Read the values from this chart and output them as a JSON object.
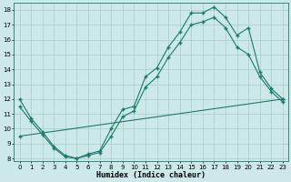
{
  "xlabel": "Humidex (Indice chaleur)",
  "bg_color": "#cce8e8",
  "line_color": "#1a7a6e",
  "grid_color": "#aacccc",
  "xlim": [
    -0.5,
    23.5
  ],
  "ylim": [
    7.8,
    18.5
  ],
  "xticks": [
    0,
    1,
    2,
    3,
    4,
    5,
    6,
    7,
    8,
    9,
    10,
    11,
    12,
    13,
    14,
    15,
    16,
    17,
    18,
    19,
    20,
    21,
    22,
    23
  ],
  "yticks": [
    8,
    9,
    10,
    11,
    12,
    13,
    14,
    15,
    16,
    17,
    18
  ],
  "curve1_x": [
    0,
    1,
    2,
    3,
    4,
    5,
    6,
    7,
    8,
    9,
    10,
    11,
    12,
    13,
    14,
    15,
    16,
    17,
    18,
    19,
    20,
    21,
    22,
    23
  ],
  "curve1_y": [
    12.0,
    10.7,
    9.8,
    8.8,
    8.2,
    8.0,
    8.3,
    8.5,
    10.0,
    11.3,
    11.5,
    13.5,
    14.1,
    15.5,
    16.5,
    17.8,
    17.8,
    18.2,
    17.5,
    16.3,
    16.8,
    13.8,
    12.7,
    12.0
  ],
  "curve2_x": [
    0,
    1,
    2,
    3,
    4,
    5,
    6,
    7,
    8,
    9,
    10,
    11,
    12,
    13,
    14,
    15,
    16,
    17,
    18,
    19,
    20,
    21,
    22,
    23
  ],
  "curve2_y": [
    11.5,
    10.5,
    9.6,
    8.7,
    8.1,
    8.0,
    8.2,
    8.4,
    9.5,
    10.8,
    11.2,
    12.8,
    13.5,
    14.8,
    15.8,
    17.0,
    17.2,
    17.5,
    16.8,
    15.5,
    15.0,
    13.5,
    12.5,
    11.8
  ],
  "curve3_x": [
    0,
    23
  ],
  "curve3_y": [
    9.5,
    12.0
  ]
}
